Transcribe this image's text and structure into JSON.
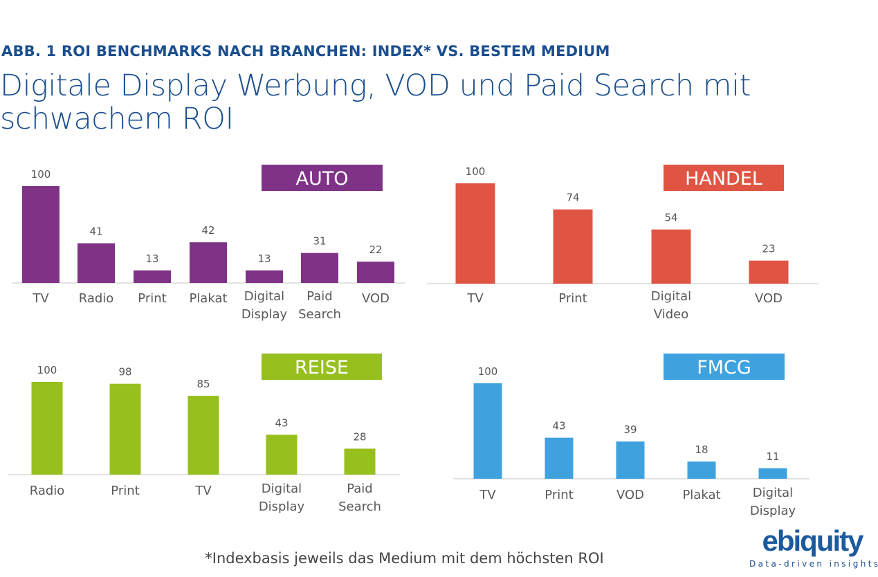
{
  "header": {
    "kicker": "ABB. 1 ROI BENCHMARKS NACH BRANCHEN: INDEX* VS. BESTEM MEDIUM",
    "title": "Digitale Display Werbung, VOD und Paid Search mit schwachem ROI"
  },
  "footnote": "*Indexbasis jeweils das Medium mit dem höchsten ROI",
  "logo": {
    "word": "ebiquity",
    "tagline": "Data-driven insights"
  },
  "chart_data": [
    {
      "type": "bar",
      "title": "AUTO",
      "color": "#7F3387",
      "categories": [
        "TV",
        "Radio",
        "Print",
        "Plakat",
        "Digital Display",
        "Paid Search",
        "VOD"
      ],
      "values": [
        100,
        41,
        13,
        42,
        13,
        31,
        22
      ],
      "ylim": [
        0,
        100
      ],
      "grid": false
    },
    {
      "type": "bar",
      "title": "HANDEL",
      "color": "#E05443",
      "categories": [
        "TV",
        "Print",
        "Digital Video",
        "VOD"
      ],
      "values": [
        100,
        74,
        54,
        23
      ],
      "ylim": [
        0,
        100
      ],
      "grid": false
    },
    {
      "type": "bar",
      "title": "REISE",
      "color": "#97BF1E",
      "categories": [
        "Radio",
        "Print",
        "TV",
        "Digital Display",
        "Paid Search"
      ],
      "values": [
        100,
        98,
        85,
        43,
        28
      ],
      "ylim": [
        0,
        100
      ],
      "grid": false
    },
    {
      "type": "bar",
      "title": "FMCG",
      "color": "#3FA2DF",
      "categories": [
        "TV",
        "Print",
        "VOD",
        "Plakat",
        "Digital Display"
      ],
      "values": [
        100,
        43,
        39,
        18,
        11
      ],
      "ylim": [
        0,
        100
      ],
      "grid": false
    }
  ]
}
